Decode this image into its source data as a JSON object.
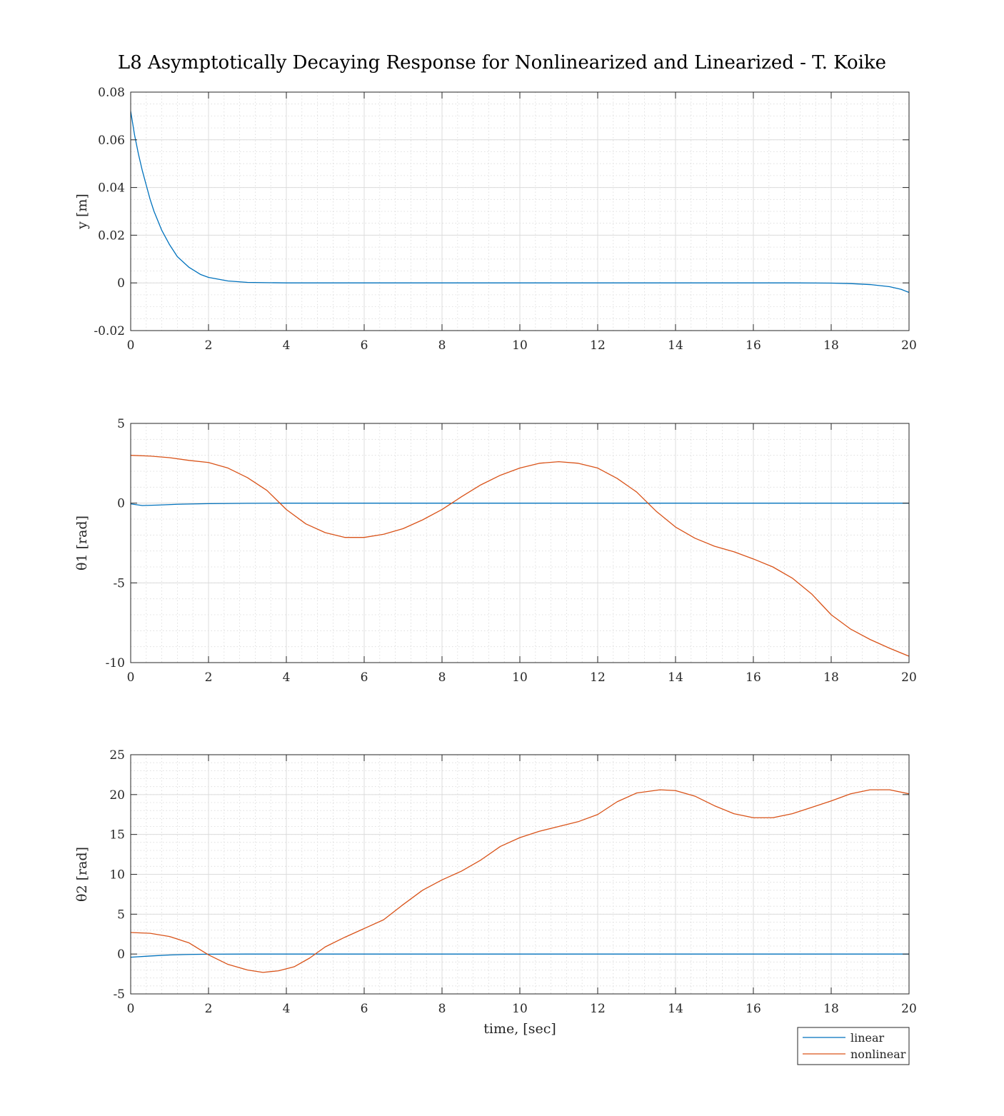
{
  "figure": {
    "title": "L8 Asymptotically Decaying Response for Nonlinearized and Linearized - T. Koike",
    "legend": {
      "placement": "bottom-right outside",
      "entries": [
        {
          "label": "linear",
          "color": "#0072BD"
        },
        {
          "label": "nonlinear",
          "color": "#D95319"
        }
      ]
    }
  },
  "chart_data": [
    {
      "type": "line",
      "xlabel": "",
      "ylabel": "y [m]",
      "xlim": [
        0,
        20
      ],
      "ylim": [
        -0.02,
        0.08
      ],
      "xticks": [
        "0",
        "2",
        "4",
        "6",
        "8",
        "10",
        "12",
        "14",
        "16",
        "18",
        "20"
      ],
      "yticks": [
        "-0.02",
        "0",
        "0.02",
        "0.04",
        "0.06",
        "0.08"
      ],
      "grid": true,
      "minor_grid": true,
      "series": [
        {
          "name": "linear",
          "color": "#0072BD",
          "points": [
            [
              0,
              0.072
            ],
            [
              0.1,
              0.062
            ],
            [
              0.2,
              0.054
            ],
            [
              0.3,
              0.047
            ],
            [
              0.4,
              0.041
            ],
            [
              0.5,
              0.035
            ],
            [
              0.6,
              0.03
            ],
            [
              0.8,
              0.022
            ],
            [
              1.0,
              0.016
            ],
            [
              1.2,
              0.011
            ],
            [
              1.5,
              0.0065
            ],
            [
              1.8,
              0.0035
            ],
            [
              2.0,
              0.0023
            ],
            [
              2.5,
              0.0008
            ],
            [
              3.0,
              0.0002
            ],
            [
              4.0,
              0.0
            ],
            [
              6,
              0.0
            ],
            [
              8,
              0.0
            ],
            [
              10,
              0.0
            ],
            [
              12,
              0.0
            ],
            [
              14,
              0.0
            ],
            [
              16,
              0.0
            ],
            [
              17,
              0.0
            ],
            [
              18,
              -0.0001
            ],
            [
              18.5,
              -0.0003
            ],
            [
              19,
              -0.0007
            ],
            [
              19.5,
              -0.0016
            ],
            [
              19.8,
              -0.0027
            ],
            [
              20,
              -0.004
            ]
          ]
        }
      ]
    },
    {
      "type": "line",
      "xlabel": "",
      "ylabel": "θ1 [rad]",
      "xlim": [
        0,
        20
      ],
      "ylim": [
        -10,
        5
      ],
      "xticks": [
        "0",
        "2",
        "4",
        "6",
        "8",
        "10",
        "12",
        "14",
        "16",
        "18",
        "20"
      ],
      "yticks": [
        "-10",
        "-5",
        "0",
        "5"
      ],
      "grid": true,
      "minor_grid": true,
      "series": [
        {
          "name": "linear",
          "color": "#0072BD",
          "points": [
            [
              0,
              -0.05
            ],
            [
              0.3,
              -0.15
            ],
            [
              0.7,
              -0.12
            ],
            [
              1.2,
              -0.07
            ],
            [
              2,
              -0.03
            ],
            [
              3,
              -0.01
            ],
            [
              4,
              0
            ],
            [
              20,
              0
            ]
          ]
        },
        {
          "name": "nonlinear",
          "color": "#D95319",
          "points": [
            [
              0,
              3.0
            ],
            [
              0.5,
              2.95
            ],
            [
              1.0,
              2.85
            ],
            [
              1.5,
              2.68
            ],
            [
              2.0,
              2.55
            ],
            [
              2.5,
              2.2
            ],
            [
              3.0,
              1.6
            ],
            [
              3.5,
              0.8
            ],
            [
              4.0,
              -0.4
            ],
            [
              4.5,
              -1.3
            ],
            [
              5.0,
              -1.85
            ],
            [
              5.5,
              -2.15
            ],
            [
              6.0,
              -2.15
            ],
            [
              6.5,
              -1.95
            ],
            [
              7.0,
              -1.6
            ],
            [
              7.5,
              -1.05
            ],
            [
              8.0,
              -0.4
            ],
            [
              8.5,
              0.4
            ],
            [
              9.0,
              1.15
            ],
            [
              9.5,
              1.75
            ],
            [
              10.0,
              2.2
            ],
            [
              10.5,
              2.5
            ],
            [
              11.0,
              2.6
            ],
            [
              11.5,
              2.5
            ],
            [
              12.0,
              2.2
            ],
            [
              12.5,
              1.55
            ],
            [
              13.0,
              0.7
            ],
            [
              13.5,
              -0.5
            ],
            [
              14.0,
              -1.5
            ],
            [
              14.5,
              -2.2
            ],
            [
              15.0,
              -2.7
            ],
            [
              15.5,
              -3.05
            ],
            [
              16.0,
              -3.5
            ],
            [
              16.5,
              -4.0
            ],
            [
              17.0,
              -4.7
            ],
            [
              17.5,
              -5.7
            ],
            [
              18.0,
              -7.0
            ],
            [
              18.5,
              -7.9
            ],
            [
              19.0,
              -8.55
            ],
            [
              19.5,
              -9.1
            ],
            [
              20.0,
              -9.6
            ]
          ]
        }
      ]
    },
    {
      "type": "line",
      "xlabel": "time, [sec]",
      "ylabel": "θ2 [rad]",
      "xlim": [
        0,
        20
      ],
      "ylim": [
        -5,
        25
      ],
      "xticks": [
        "0",
        "2",
        "4",
        "6",
        "8",
        "10",
        "12",
        "14",
        "16",
        "18",
        "20"
      ],
      "yticks": [
        "-5",
        "0",
        "5",
        "10",
        "15",
        "20",
        "25"
      ],
      "grid": true,
      "minor_grid": true,
      "series": [
        {
          "name": "linear",
          "color": "#0072BD",
          "points": [
            [
              0,
              -0.4
            ],
            [
              0.5,
              -0.25
            ],
            [
              1.0,
              -0.12
            ],
            [
              1.5,
              -0.05
            ],
            [
              2.0,
              -0.02
            ],
            [
              3.0,
              0
            ],
            [
              20,
              0
            ]
          ]
        },
        {
          "name": "nonlinear",
          "color": "#D95319",
          "points": [
            [
              0,
              2.7
            ],
            [
              0.5,
              2.6
            ],
            [
              1.0,
              2.2
            ],
            [
              1.5,
              1.4
            ],
            [
              2.0,
              -0.1
            ],
            [
              2.5,
              -1.3
            ],
            [
              3.0,
              -2.0
            ],
            [
              3.4,
              -2.3
            ],
            [
              3.8,
              -2.1
            ],
            [
              4.2,
              -1.6
            ],
            [
              4.6,
              -0.5
            ],
            [
              5.0,
              0.9
            ],
            [
              5.5,
              2.1
            ],
            [
              6.0,
              3.2
            ],
            [
              6.5,
              4.3
            ],
            [
              7.0,
              6.2
            ],
            [
              7.5,
              8.0
            ],
            [
              8.0,
              9.3
            ],
            [
              8.5,
              10.4
            ],
            [
              9.0,
              11.8
            ],
            [
              9.5,
              13.5
            ],
            [
              10.0,
              14.6
            ],
            [
              10.5,
              15.4
            ],
            [
              11.0,
              16.0
            ],
            [
              11.5,
              16.6
            ],
            [
              12.0,
              17.5
            ],
            [
              12.5,
              19.1
            ],
            [
              13.0,
              20.2
            ],
            [
              13.6,
              20.6
            ],
            [
              14.0,
              20.5
            ],
            [
              14.5,
              19.8
            ],
            [
              15.0,
              18.6
            ],
            [
              15.5,
              17.6
            ],
            [
              16.0,
              17.1
            ],
            [
              16.5,
              17.1
            ],
            [
              17.0,
              17.6
            ],
            [
              17.5,
              18.4
            ],
            [
              18.0,
              19.2
            ],
            [
              18.5,
              20.1
            ],
            [
              19.0,
              20.6
            ],
            [
              19.5,
              20.6
            ],
            [
              20.0,
              20.1
            ]
          ]
        }
      ]
    }
  ]
}
